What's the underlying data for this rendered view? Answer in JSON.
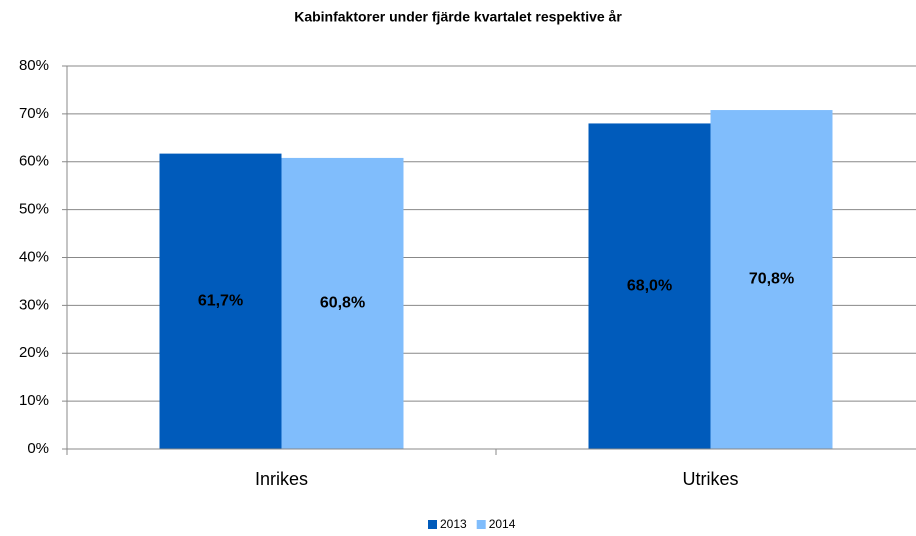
{
  "chart_data": {
    "type": "bar",
    "title": "Kabinfaktorer under fjärde kvartalet respektive år",
    "categories": [
      "Inrikes",
      "Utrikes"
    ],
    "series": [
      {
        "name": "2013",
        "color": "#005bbb",
        "values": [
          61.7,
          68.0
        ],
        "value_labels": [
          "61,7%",
          "68,0%"
        ]
      },
      {
        "name": "2014",
        "color": "#80bdfc",
        "values": [
          60.8,
          70.8
        ],
        "value_labels": [
          "60,8%",
          "70,8%"
        ]
      }
    ],
    "ylim": [
      0,
      80
    ],
    "yticks": [
      {
        "value": 0,
        "label": "0%"
      },
      {
        "value": 10,
        "label": "10%"
      },
      {
        "value": 20,
        "label": "20%"
      },
      {
        "value": 30,
        "label": "30%"
      },
      {
        "value": 40,
        "label": "40%"
      },
      {
        "value": 50,
        "label": "50%"
      },
      {
        "value": 60,
        "label": "60%"
      },
      {
        "value": 70,
        "label": "70%"
      },
      {
        "value": 80,
        "label": "80%"
      }
    ],
    "grid": true,
    "legend": "bottom"
  }
}
